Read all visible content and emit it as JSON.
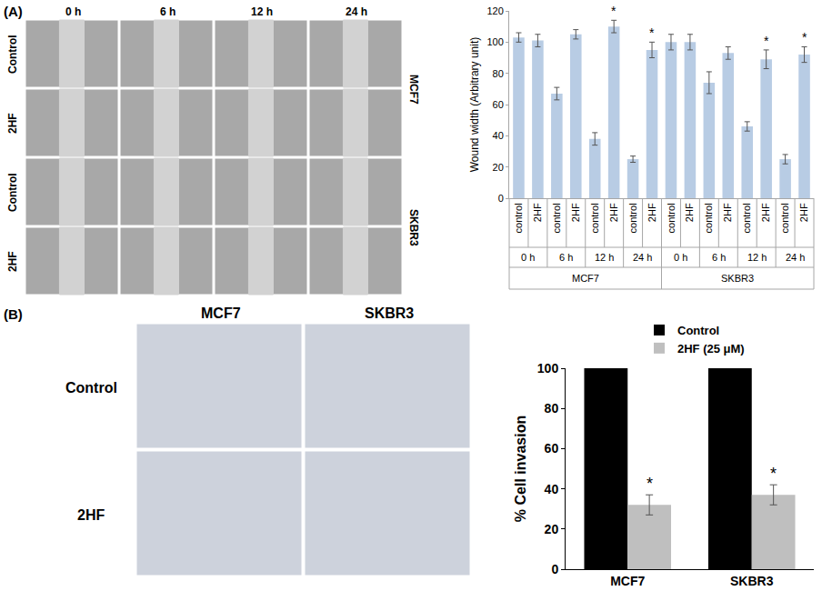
{
  "figure": {
    "panels": [
      {
        "label": "(A)",
        "images": {
          "columns": [
            "0 h",
            "6 h",
            "12 h",
            "24 h"
          ],
          "rows": [
            "Control",
            "2HF",
            "Control",
            "2HF"
          ],
          "row_groups": [
            "MCF7",
            "SKBR3"
          ]
        }
      },
      {
        "label": "(B)",
        "images": {
          "columns": [
            "MCF7",
            "SKBR3"
          ],
          "rows": [
            "Control",
            "2HF"
          ]
        }
      }
    ]
  },
  "chart_data": [
    {
      "type": "bar",
      "y_title": "Wound width (Arbitrary unit)",
      "categories": [
        "control",
        "2HF",
        "control",
        "2HF",
        "control",
        "2HF",
        "control",
        "2HF",
        "control",
        "2HF",
        "control",
        "2HF",
        "control",
        "2HF",
        "control",
        "2HF"
      ],
      "groups": [
        "0 h",
        "0 h",
        "6 h",
        "6 h",
        "12 h",
        "12 h",
        "24 h",
        "24 h",
        "0 h",
        "0 h",
        "6 h",
        "6 h",
        "12 h",
        "12 h",
        "24 h",
        "24 h"
      ],
      "supergroups": [
        "MCF7",
        "MCF7",
        "MCF7",
        "MCF7",
        "MCF7",
        "MCF7",
        "MCF7",
        "MCF7",
        "SKBR3",
        "SKBR3",
        "SKBR3",
        "SKBR3",
        "SKBR3",
        "SKBR3",
        "SKBR3",
        "SKBR3"
      ],
      "values": [
        103,
        101,
        67,
        105,
        38,
        110,
        25,
        95,
        100,
        100,
        74,
        93,
        46,
        89,
        25,
        92
      ],
      "errors": [
        3,
        4,
        4,
        3,
        4,
        4,
        2,
        5,
        5,
        5,
        7,
        4,
        3,
        6,
        3,
        5
      ],
      "significant": [
        false,
        false,
        false,
        false,
        false,
        true,
        false,
        true,
        false,
        false,
        false,
        false,
        false,
        true,
        false,
        true
      ],
      "significance_label": "*",
      "color": "#b8cce4",
      "ylim": [
        0,
        120
      ],
      "yticks": [
        0,
        20,
        40,
        60,
        80,
        100,
        120
      ],
      "grid": false
    },
    {
      "type": "bar",
      "y_title": "% Cell invasion",
      "categories": [
        "MCF7",
        "SKBR3"
      ],
      "series": [
        {
          "name": "Control",
          "color": "#000000",
          "values": [
            100,
            100
          ],
          "significant": [
            false,
            false
          ]
        },
        {
          "name": "2HF (25 μM)",
          "color": "#bfbfbf",
          "values": [
            32,
            37
          ],
          "errors": [
            5,
            5
          ],
          "significant": [
            true,
            true
          ]
        }
      ],
      "significance_label": "*",
      "ylim": [
        0,
        100
      ],
      "yticks": [
        0,
        20,
        40,
        60,
        80,
        100
      ],
      "legend": "top right",
      "grid": false
    }
  ]
}
